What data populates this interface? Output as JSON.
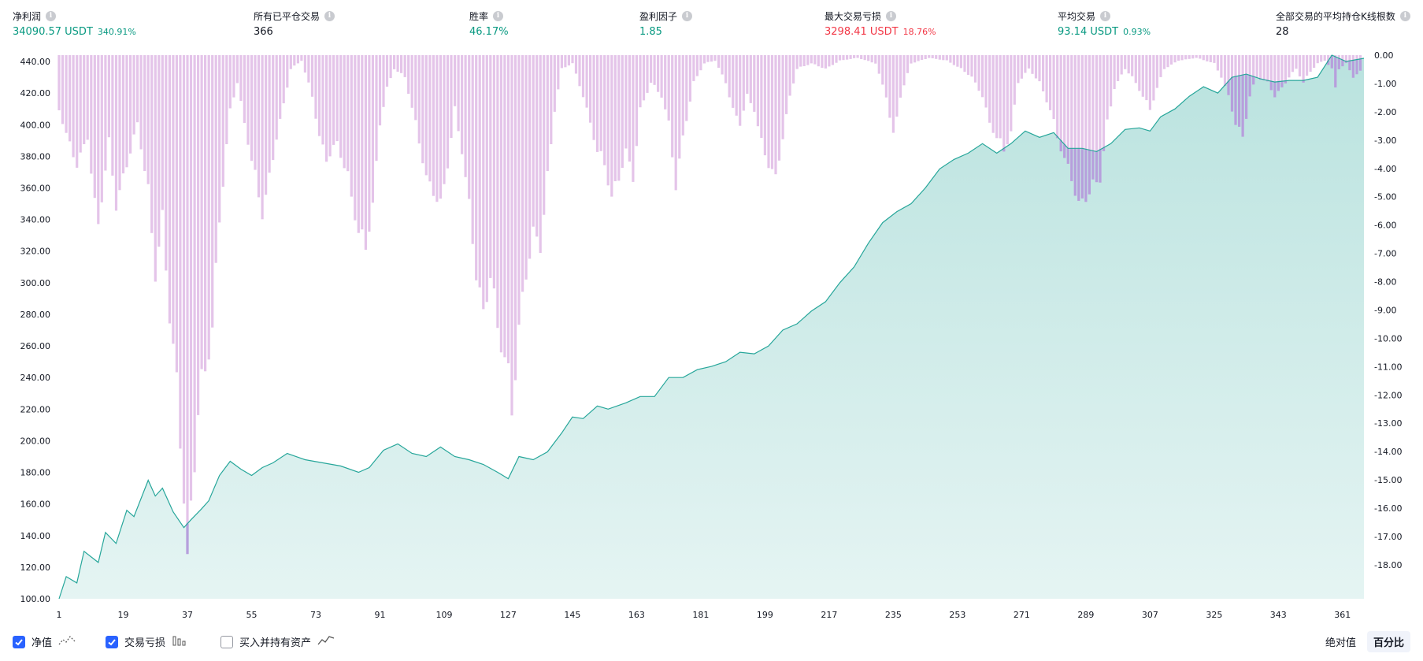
{
  "stats": [
    {
      "label": "净利润",
      "value": "34090.57 USDT",
      "pct": "340.91%",
      "color": "green"
    },
    {
      "label": "所有已平仓交易",
      "value": "366",
      "pct": "",
      "color": "dark"
    },
    {
      "label": "胜率",
      "value": "46.17%",
      "pct": "",
      "color": "green"
    },
    {
      "label": "盈利因子",
      "value": "1.85",
      "pct": "",
      "color": "green"
    },
    {
      "label": "最大交易亏损",
      "value": "3298.41 USDT",
      "pct": "18.76%",
      "color": "red"
    },
    {
      "label": "平均交易",
      "value": "93.14 USDT",
      "pct": "0.93%",
      "color": "green"
    },
    {
      "label": "全部交易的平均持仓K线根数",
      "value": "28",
      "pct": "",
      "color": "dark"
    }
  ],
  "legend": {
    "equity_label": "净值",
    "drawdown_label": "交易亏损",
    "buyhold_label": "买入并持有资产"
  },
  "toggles": {
    "absolute": "绝对值",
    "percent": "百分比"
  },
  "chart_data": {
    "type": "area",
    "x_ticks": [
      1,
      19,
      37,
      55,
      73,
      91,
      109,
      127,
      145,
      163,
      181,
      199,
      217,
      235,
      253,
      271,
      289,
      307,
      325,
      343,
      361
    ],
    "x_range": [
      1,
      367
    ],
    "left_axis": {
      "ticks": [
        "100.00",
        "120.00",
        "140.00",
        "160.00",
        "180.00",
        "200.00",
        "220.00",
        "240.00",
        "260.00",
        "280.00",
        "300.00",
        "320.00",
        "340.00",
        "360.00",
        "380.00",
        "400.00",
        "420.00",
        "440.00"
      ],
      "range": [
        100,
        444
      ]
    },
    "right_axis": {
      "ticks": [
        "0.00",
        "-1.00",
        "-2.00",
        "-3.00",
        "-4.00",
        "-5.00",
        "-6.00",
        "-7.00",
        "-8.00",
        "-9.00",
        "-10.00",
        "-11.00",
        "-12.00",
        "-13.00",
        "-14.00",
        "-15.00",
        "-16.00",
        "-17.00",
        "-18.00"
      ],
      "range": [
        0,
        -19.2
      ]
    },
    "colors": {
      "equity_line": "#26a69a",
      "equity_fill": "#26a69a",
      "drawdown_bar": "#e1bee7",
      "drawdown_bar_overlap": "#b39ddb"
    },
    "equity_anchors": [
      [
        1,
        100
      ],
      [
        3,
        114
      ],
      [
        6,
        110
      ],
      [
        8,
        130
      ],
      [
        12,
        123
      ],
      [
        14,
        142
      ],
      [
        17,
        135
      ],
      [
        20,
        156
      ],
      [
        22,
        152
      ],
      [
        26,
        175
      ],
      [
        28,
        165
      ],
      [
        30,
        170
      ],
      [
        33,
        155
      ],
      [
        36,
        145
      ],
      [
        38,
        150
      ],
      [
        41,
        157
      ],
      [
        43,
        162
      ],
      [
        46,
        178
      ],
      [
        49,
        187
      ],
      [
        52,
        182
      ],
      [
        55,
        178
      ],
      [
        58,
        183
      ],
      [
        61,
        186
      ],
      [
        65,
        192
      ],
      [
        70,
        188
      ],
      [
        75,
        186
      ],
      [
        80,
        184
      ],
      [
        85,
        180
      ],
      [
        88,
        183
      ],
      [
        92,
        194
      ],
      [
        96,
        198
      ],
      [
        100,
        192
      ],
      [
        104,
        190
      ],
      [
        108,
        196
      ],
      [
        112,
        190
      ],
      [
        116,
        188
      ],
      [
        120,
        185
      ],
      [
        124,
        180
      ],
      [
        127,
        176
      ],
      [
        130,
        190
      ],
      [
        134,
        188
      ],
      [
        138,
        193
      ],
      [
        142,
        205
      ],
      [
        145,
        215
      ],
      [
        148,
        214
      ],
      [
        152,
        222
      ],
      [
        155,
        220
      ],
      [
        160,
        224
      ],
      [
        164,
        228
      ],
      [
        168,
        228
      ],
      [
        172,
        240
      ],
      [
        176,
        240
      ],
      [
        180,
        245
      ],
      [
        184,
        247
      ],
      [
        188,
        250
      ],
      [
        192,
        256
      ],
      [
        196,
        255
      ],
      [
        200,
        260
      ],
      [
        204,
        270
      ],
      [
        208,
        274
      ],
      [
        212,
        282
      ],
      [
        216,
        288
      ],
      [
        220,
        300
      ],
      [
        224,
        310
      ],
      [
        228,
        325
      ],
      [
        232,
        338
      ],
      [
        236,
        345
      ],
      [
        240,
        350
      ],
      [
        244,
        360
      ],
      [
        248,
        372
      ],
      [
        252,
        378
      ],
      [
        256,
        382
      ],
      [
        260,
        388
      ],
      [
        264,
        382
      ],
      [
        268,
        388
      ],
      [
        272,
        396
      ],
      [
        276,
        392
      ],
      [
        280,
        395
      ],
      [
        284,
        385
      ],
      [
        288,
        385
      ],
      [
        292,
        383
      ],
      [
        296,
        388
      ],
      [
        300,
        397
      ],
      [
        304,
        398
      ],
      [
        307,
        396
      ],
      [
        310,
        405
      ],
      [
        314,
        410
      ],
      [
        318,
        418
      ],
      [
        322,
        424
      ],
      [
        326,
        420
      ],
      [
        330,
        430
      ],
      [
        334,
        432
      ],
      [
        338,
        429
      ],
      [
        342,
        427
      ],
      [
        346,
        428
      ],
      [
        350,
        428
      ],
      [
        354,
        430
      ],
      [
        358,
        444
      ],
      [
        362,
        440
      ],
      [
        367,
        442
      ]
    ],
    "drawdown_anchors": [
      [
        1,
        -2.0
      ],
      [
        4,
        -3.3
      ],
      [
        6,
        -4.0
      ],
      [
        9,
        -3.0
      ],
      [
        11,
        -5.5
      ],
      [
        12,
        -6.2
      ],
      [
        15,
        -3.2
      ],
      [
        17,
        -5.5
      ],
      [
        19,
        -4.5
      ],
      [
        21,
        -3.5
      ],
      [
        23,
        -2.5
      ],
      [
        26,
        -5.0
      ],
      [
        28,
        -8.0
      ],
      [
        30,
        -6.0
      ],
      [
        32,
        -9.5
      ],
      [
        34,
        -12.0
      ],
      [
        36,
        -16.0
      ],
      [
        37,
        -19.0
      ],
      [
        38,
        -16.5
      ],
      [
        40,
        -13.0
      ],
      [
        42,
        -11.5
      ],
      [
        44,
        -10.0
      ],
      [
        46,
        -6.0
      ],
      [
        49,
        -2.0
      ],
      [
        51,
        -1.0
      ],
      [
        53,
        -2.5
      ],
      [
        56,
        -4.5
      ],
      [
        58,
        -5.8
      ],
      [
        60,
        -4.5
      ],
      [
        62,
        -3.0
      ],
      [
        64,
        -1.8
      ],
      [
        66,
        -0.5
      ],
      [
        69,
        -0.2
      ],
      [
        72,
        -1.5
      ],
      [
        74,
        -3.0
      ],
      [
        76,
        -3.8
      ],
      [
        79,
        -3.2
      ],
      [
        82,
        -4.5
      ],
      [
        85,
        -6.5
      ],
      [
        87,
        -7.0
      ],
      [
        89,
        -5.5
      ],
      [
        91,
        -2.5
      ],
      [
        93,
        -1.2
      ],
      [
        95,
        -0.5
      ],
      [
        98,
        -0.8
      ],
      [
        101,
        -2.5
      ],
      [
        104,
        -4.5
      ],
      [
        106,
        -5.0
      ],
      [
        108,
        -5.5
      ],
      [
        110,
        -4.0
      ],
      [
        112,
        -2.0
      ],
      [
        114,
        -3.5
      ],
      [
        116,
        -5.5
      ],
      [
        118,
        -8.0
      ],
      [
        120,
        -9.5
      ],
      [
        122,
        -8.0
      ],
      [
        124,
        -10.0
      ],
      [
        126,
        -11.0
      ],
      [
        128,
        -13.0
      ],
      [
        130,
        -10.0
      ],
      [
        132,
        -8.0
      ],
      [
        134,
        -6.5
      ],
      [
        136,
        -7.0
      ],
      [
        138,
        -4.5
      ],
      [
        140,
        -2.0
      ],
      [
        142,
        -0.5
      ],
      [
        145,
        -0.3
      ],
      [
        148,
        -1.5
      ],
      [
        150,
        -2.5
      ],
      [
        152,
        -3.5
      ],
      [
        154,
        -4.0
      ],
      [
        156,
        -5.2
      ],
      [
        158,
        -4.5
      ],
      [
        160,
        -3.5
      ],
      [
        162,
        -4.5
      ],
      [
        164,
        -2.0
      ],
      [
        167,
        -1.0
      ],
      [
        170,
        -1.5
      ],
      [
        172,
        -2.5
      ],
      [
        174,
        -4.8
      ],
      [
        176,
        -3.0
      ],
      [
        179,
        -1.0
      ],
      [
        182,
        -0.3
      ],
      [
        185,
        -0.2
      ],
      [
        188,
        -1.0
      ],
      [
        190,
        -2.0
      ],
      [
        192,
        -2.5
      ],
      [
        194,
        -1.5
      ],
      [
        196,
        -2.0
      ],
      [
        198,
        -3.2
      ],
      [
        200,
        -4.0
      ],
      [
        202,
        -4.5
      ],
      [
        204,
        -3.0
      ],
      [
        206,
        -1.5
      ],
      [
        208,
        -0.5
      ],
      [
        212,
        -0.3
      ],
      [
        216,
        -0.5
      ],
      [
        220,
        -0.2
      ],
      [
        225,
        -0.1
      ],
      [
        230,
        -0.3
      ],
      [
        233,
        -1.5
      ],
      [
        235,
        -3.0
      ],
      [
        237,
        -1.5
      ],
      [
        240,
        -0.3
      ],
      [
        245,
        -0.1
      ],
      [
        250,
        -0.2
      ],
      [
        254,
        -0.5
      ],
      [
        257,
        -0.8
      ],
      [
        260,
        -1.5
      ],
      [
        262,
        -2.5
      ],
      [
        264,
        -3.0
      ],
      [
        266,
        -3.5
      ],
      [
        268,
        -2.8
      ],
      [
        270,
        -1.0
      ],
      [
        273,
        -0.5
      ],
      [
        276,
        -1.0
      ],
      [
        279,
        -2.0
      ],
      [
        281,
        -3.0
      ],
      [
        283,
        -3.8
      ],
      [
        285,
        -4.5
      ],
      [
        287,
        -5.5
      ],
      [
        289,
        -5.2
      ],
      [
        291,
        -4.8
      ],
      [
        293,
        -4.5
      ],
      [
        295,
        -2.5
      ],
      [
        297,
        -1.2
      ],
      [
        300,
        -0.5
      ],
      [
        302,
        -0.8
      ],
      [
        305,
        -1.5
      ],
      [
        307,
        -2.0
      ],
      [
        309,
        -1.2
      ],
      [
        311,
        -0.5
      ],
      [
        315,
        -0.2
      ],
      [
        320,
        -0.1
      ],
      [
        325,
        -0.3
      ],
      [
        327,
        -0.8
      ],
      [
        329,
        -1.5
      ],
      [
        331,
        -2.5
      ],
      [
        333,
        -3.0
      ],
      [
        335,
        -1.5
      ],
      [
        337,
        -0.8
      ],
      [
        340,
        -1.0
      ],
      [
        342,
        -1.5
      ],
      [
        344,
        -1.2
      ],
      [
        346,
        -0.8
      ],
      [
        348,
        -0.5
      ],
      [
        350,
        -1.0
      ],
      [
        352,
        -0.6
      ],
      [
        354,
        -0.3
      ],
      [
        356,
        -0.2
      ],
      [
        358,
        -0.5
      ],
      [
        359,
        -1.2
      ],
      [
        360,
        -0.5
      ],
      [
        362,
        -0.3
      ],
      [
        364,
        -0.8
      ],
      [
        366,
        -0.6
      ],
      [
        367,
        -0.4
      ]
    ]
  }
}
